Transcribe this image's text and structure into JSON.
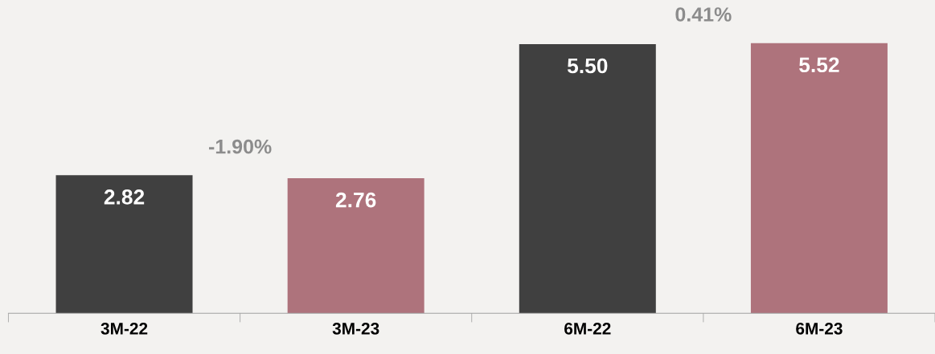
{
  "chart_data": {
    "type": "bar",
    "categories": [
      "3M-22",
      "3M-23",
      "6M-22",
      "6M-23"
    ],
    "values": [
      2.82,
      2.76,
      5.5,
      5.52
    ],
    "colors": [
      "#404040",
      "#ae737c",
      "#404040",
      "#ae737c"
    ],
    "value_labels": [
      "2.82",
      "2.76",
      "5.50",
      "5.52"
    ],
    "annotations": [
      "-1.90%",
      "0.41%"
    ],
    "ylim": [
      0,
      6.4
    ],
    "grid": false,
    "legend": false
  }
}
